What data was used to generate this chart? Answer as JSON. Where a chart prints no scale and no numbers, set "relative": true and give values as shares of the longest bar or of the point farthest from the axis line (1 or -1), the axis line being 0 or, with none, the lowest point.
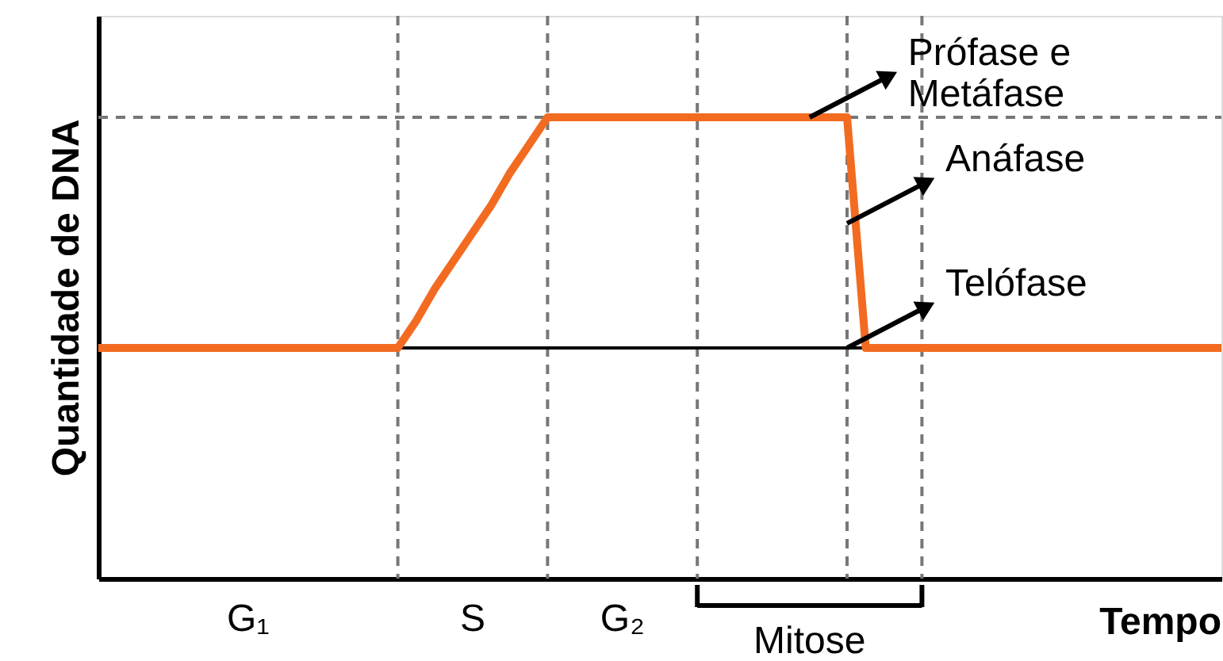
{
  "chart_data": {
    "type": "line",
    "relative": true,
    "grid": true,
    "ylabel": "Quantidade de DNA",
    "xlabel": "Tempo",
    "categories": [
      null,
      null,
      null,
      null,
      null,
      null,
      null,
      null,
      null,
      null,
      null,
      null,
      null,
      null,
      null,
      null,
      null,
      null,
      null,
      null,
      null,
      null,
      null,
      null,
      null,
      null,
      null,
      null,
      null,
      null,
      null,
      null,
      null,
      null,
      null,
      null,
      null,
      null,
      null,
      null,
      null,
      null,
      null,
      null,
      null,
      null,
      null,
      null,
      null,
      null,
      null,
      null,
      null,
      null,
      null,
      null,
      null,
      null,
      null,
      null,
      null
    ],
    "series": [
      {
        "color": "#f26b21",
        "values": [
          0.5,
          0.5,
          0.5,
          0.5,
          0.5,
          0.5,
          0.5,
          0.5,
          0.5,
          0.5,
          0.5,
          0.5,
          0.5,
          0.5,
          0.5,
          0.5,
          0.5,
          0.56,
          0.63,
          0.69,
          0.75,
          0.81,
          0.88,
          0.94,
          1,
          1,
          1,
          1,
          1,
          1,
          1,
          1,
          1,
          1,
          1,
          1,
          1,
          1,
          1,
          1,
          1,
          0.5,
          0.5,
          0.5,
          0.5,
          0.5,
          0.5,
          0.5,
          0.5,
          0.5,
          0.5,
          0.5,
          0.5,
          0.5,
          0.5,
          0.5,
          0.5,
          0.5,
          0.5,
          0.5,
          0.5
        ]
      }
    ],
    "ref_lines": [
      {
        "axis": "y",
        "value": 0.5,
        "color": "#000000",
        "line_style": "solid"
      }
    ],
    "annotations": [
      "G₁",
      "S",
      "G₂",
      "Mitose",
      "Prófase e\nMetáfase",
      "Anáfase",
      "Telófase"
    ]
  }
}
